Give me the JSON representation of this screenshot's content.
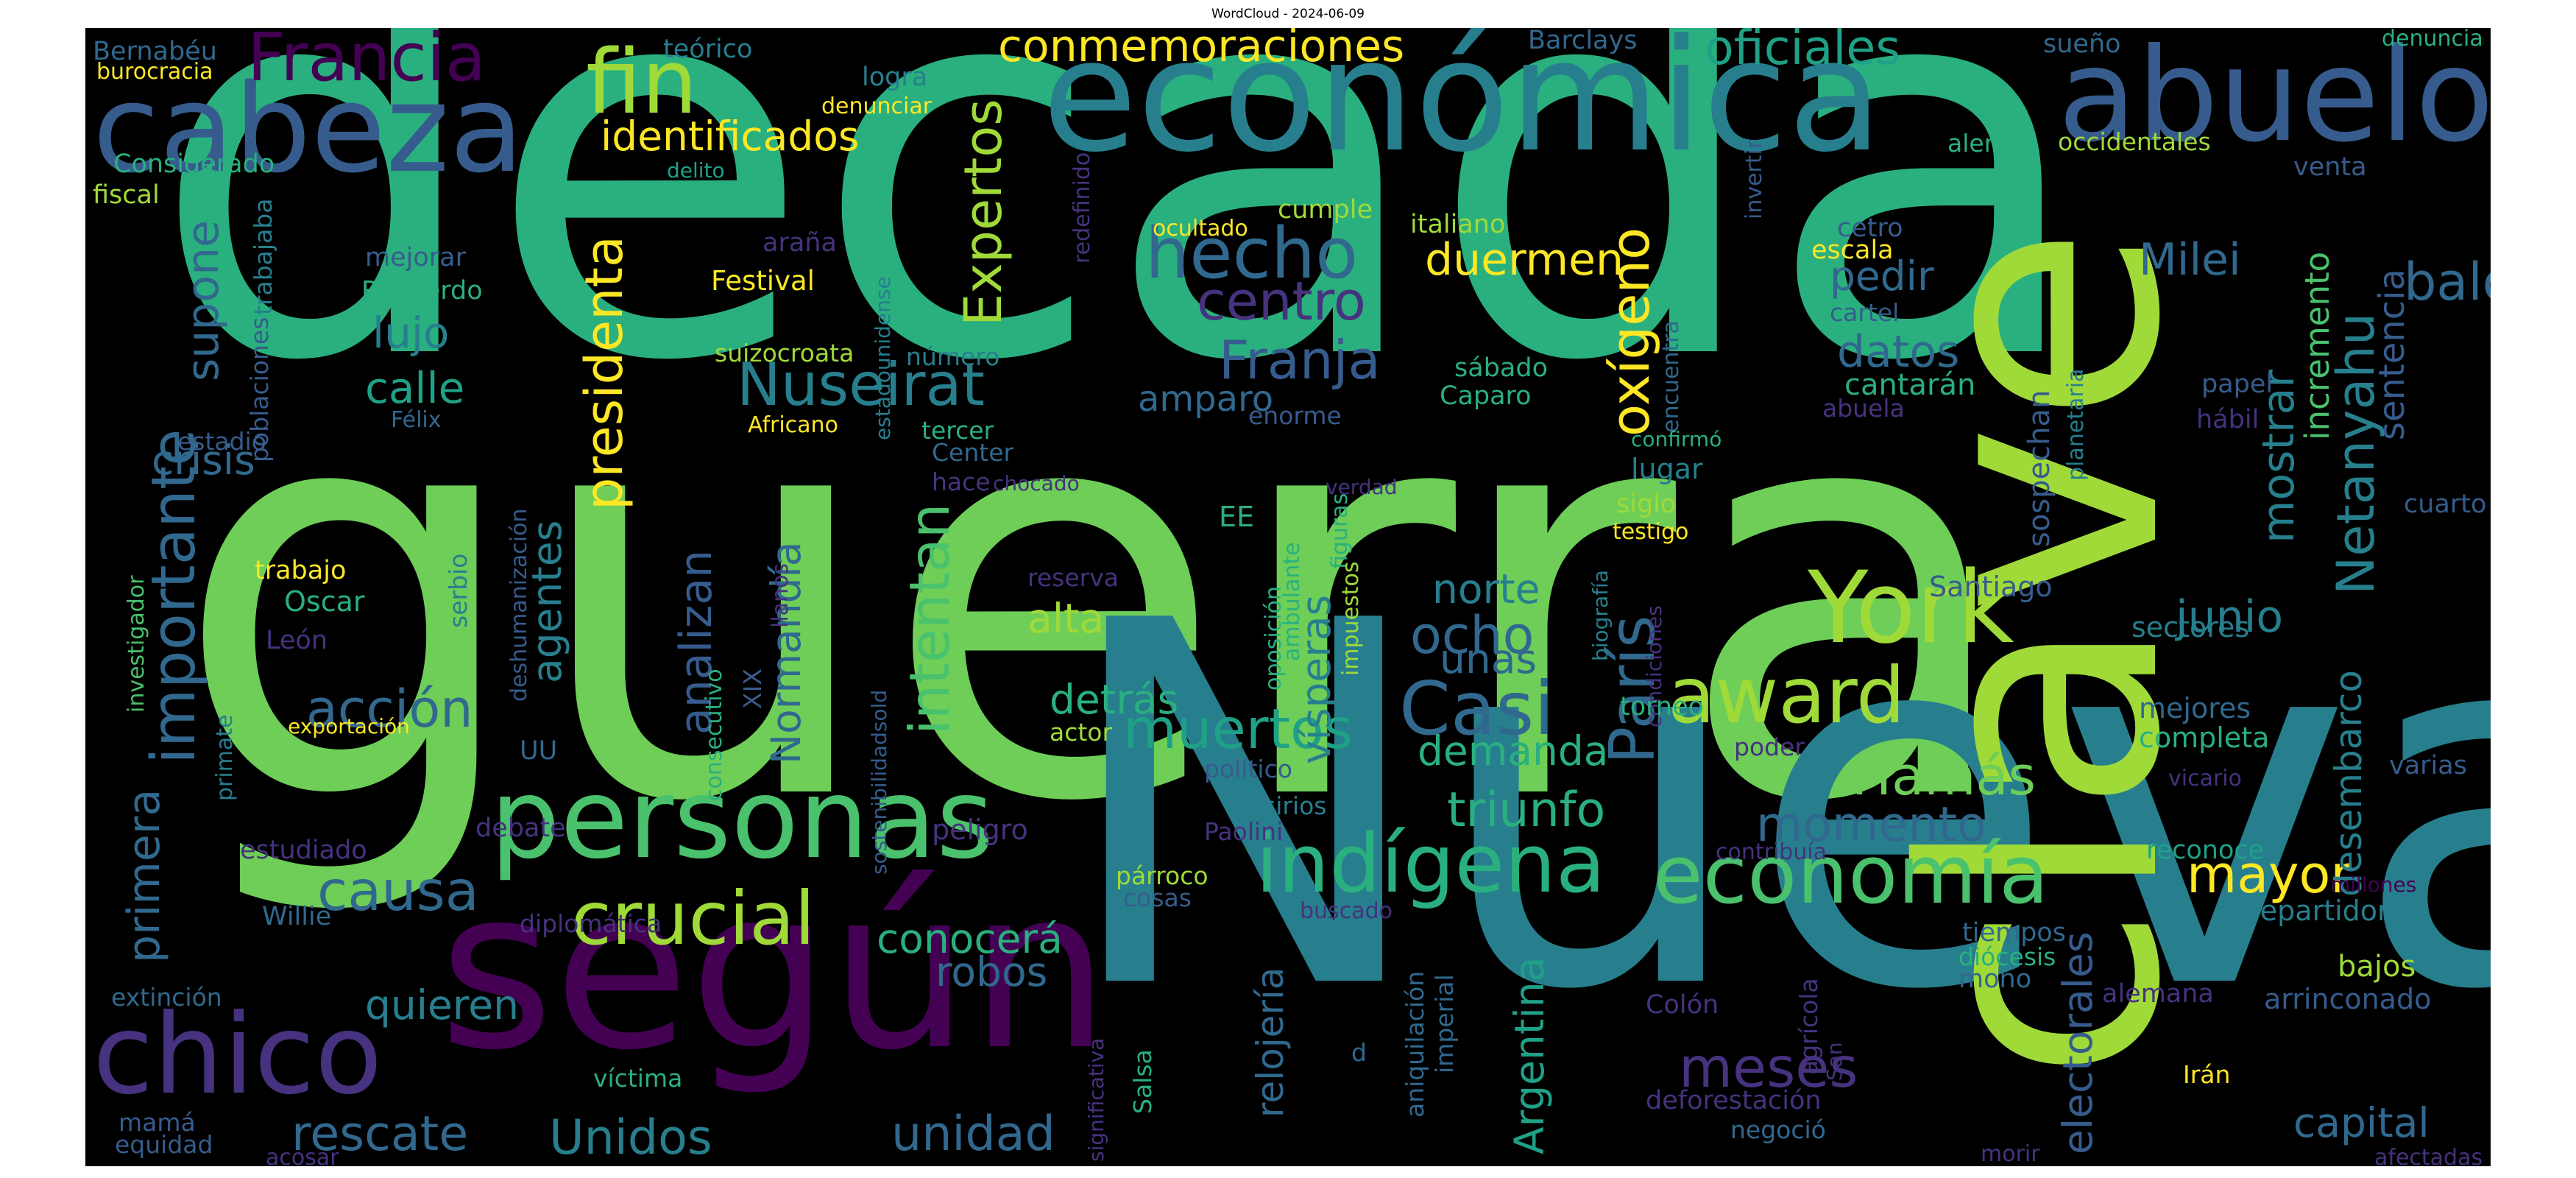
{
  "title": "WordCloud - 2024-06-09",
  "palette": {
    "purple": "#440154",
    "indigo": "#46327e",
    "blue": "#365c8d",
    "slate": "#31688e",
    "teal": "#277f8e",
    "aqua": "#1fa187",
    "green": "#2ab07f",
    "lime": "#4ac16d",
    "light": "#6ece58",
    "yellowgreen": "#a0da39",
    "yellow": "#fde725"
  },
  "words": [
    {
      "text": "década",
      "color": "#2ab07f"
    },
    {
      "text": "guerra",
      "color": "#6ece58"
    },
    {
      "text": "Nueva",
      "color": "#277f8e"
    },
    {
      "text": "clave",
      "color": "#a0da39"
    },
    {
      "text": "económica",
      "color": "#277f8e"
    },
    {
      "text": "según",
      "color": "#440154"
    },
    {
      "text": "cabeza",
      "color": "#365c8d"
    },
    {
      "text": "abuelo",
      "color": "#365c8d"
    },
    {
      "text": "personas",
      "color": "#4ac16d"
    },
    {
      "text": "chico",
      "color": "#46327e"
    },
    {
      "text": "York",
      "color": "#a0da39"
    },
    {
      "text": "Francia",
      "color": "#440154"
    },
    {
      "text": "fin",
      "color": "#a0da39"
    },
    {
      "text": "importante",
      "color": "#31688e"
    },
    {
      "text": "award",
      "color": "#a0da39"
    },
    {
      "text": "Casi",
      "color": "#31688e"
    },
    {
      "text": "París",
      "color": "#31688e"
    },
    {
      "text": "indígena",
      "color": "#2ab07f"
    },
    {
      "text": "economía",
      "color": "#4ac16d"
    },
    {
      "text": "crucial",
      "color": "#a0da39"
    },
    {
      "text": "hecho",
      "color": "#31688e"
    },
    {
      "text": "Nuseirat",
      "color": "#277f8e"
    },
    {
      "text": "Hamás",
      "color": "#6ece58"
    },
    {
      "text": "oficiales",
      "color": "#1fa187"
    },
    {
      "text": "conmemoraciones",
      "color": "#fde725"
    },
    {
      "text": "identificados",
      "color": "#fde725"
    },
    {
      "text": "presidenta",
      "color": "#fde725"
    },
    {
      "text": "Expertos",
      "color": "#a0da39"
    },
    {
      "text": "oxígeno",
      "color": "#fde725"
    },
    {
      "text": "Netanyahu",
      "color": "#277f8e"
    },
    {
      "text": "mostrar",
      "color": "#277f8e"
    },
    {
      "text": "balón",
      "color": "#31688e"
    },
    {
      "text": "Milei",
      "color": "#31688e"
    },
    {
      "text": "centro",
      "color": "#46327e"
    },
    {
      "text": "Franja",
      "color": "#365c8d"
    },
    {
      "text": "duermen",
      "color": "#fde725"
    },
    {
      "text": "supone",
      "color": "#31688e"
    },
    {
      "text": "lujo",
      "color": "#277f8e"
    },
    {
      "text": "calle",
      "color": "#1fa187"
    },
    {
      "text": "crisis",
      "color": "#31688e"
    },
    {
      "text": "primera",
      "color": "#31688e"
    },
    {
      "text": "acción",
      "color": "#31688e"
    },
    {
      "text": "analizan",
      "color": "#365c8d"
    },
    {
      "text": "agentes",
      "color": "#277f8e"
    },
    {
      "text": "intentan",
      "color": "#4ac16d"
    },
    {
      "text": "Normandía",
      "color": "#31688e"
    },
    {
      "text": "muertos",
      "color": "#1fa187"
    },
    {
      "text": "detrás",
      "color": "#2ab07f"
    },
    {
      "text": "alta",
      "color": "#a0da39"
    },
    {
      "text": "ocho",
      "color": "#31688e"
    },
    {
      "text": "unas",
      "color": "#31688e"
    },
    {
      "text": "norte",
      "color": "#277f8e"
    },
    {
      "text": "momento",
      "color": "#31688e"
    },
    {
      "text": "triunfo",
      "color": "#2ab07f"
    },
    {
      "text": "demanda",
      "color": "#2ab07f"
    },
    {
      "text": "vísperas",
      "color": "#277f8e"
    },
    {
      "text": "junio",
      "color": "#277f8e"
    },
    {
      "text": "mayor",
      "color": "#fde725"
    },
    {
      "text": "causa",
      "color": "#31688e"
    },
    {
      "text": "conocerá",
      "color": "#2ab07f"
    },
    {
      "text": "robos",
      "color": "#31688e"
    },
    {
      "text": "quieren",
      "color": "#277f8e"
    },
    {
      "text": "rescate",
      "color": "#31688e"
    },
    {
      "text": "Unidos",
      "color": "#277f8e"
    },
    {
      "text": "unidad",
      "color": "#31688e"
    },
    {
      "text": "meses",
      "color": "#46327e"
    },
    {
      "text": "relojería",
      "color": "#31688e"
    },
    {
      "text": "Argentina",
      "color": "#1fa187"
    },
    {
      "text": "electorales",
      "color": "#365c8d"
    },
    {
      "text": "capital",
      "color": "#31688e"
    },
    {
      "text": "datos",
      "color": "#31688e"
    },
    {
      "text": "pedir",
      "color": "#31688e"
    },
    {
      "text": "cantarán",
      "color": "#2ab07f"
    },
    {
      "text": "amparo",
      "color": "#31688e"
    },
    {
      "text": "sospechan",
      "color": "#365c8d"
    },
    {
      "text": "incremento",
      "color": "#4ac16d"
    },
    {
      "text": "sentencia",
      "color": "#365c8d"
    },
    {
      "text": "desembarco",
      "color": "#277f8e"
    },
    {
      "text": "Santiago",
      "color": "#365c8d"
    },
    {
      "text": "sectores",
      "color": "#277f8e"
    },
    {
      "text": "completa",
      "color": "#2ab07f"
    },
    {
      "text": "mejores",
      "color": "#31688e"
    },
    {
      "text": "reconoce",
      "color": "#1fa187"
    },
    {
      "text": "repartidor",
      "color": "#277f8e"
    },
    {
      "text": "bajos",
      "color": "#a0da39"
    },
    {
      "text": "arrinconado",
      "color": "#365c8d"
    },
    {
      "text": "varias",
      "color": "#365c8d"
    },
    {
      "text": "cuarto",
      "color": "#365c8d"
    },
    {
      "text": "Barclays",
      "color": "#31688e"
    },
    {
      "text": "sueño",
      "color": "#31688e"
    },
    {
      "text": "denuncia",
      "color": "#2ab07f"
    },
    {
      "text": "Bernabéu",
      "color": "#31688e"
    },
    {
      "text": "burocracia",
      "color": "#fde725"
    },
    {
      "text": "teórico",
      "color": "#277f8e"
    },
    {
      "text": "logra",
      "color": "#277f8e"
    },
    {
      "text": "denunciar",
      "color": "#fde725"
    },
    {
      "text": "Considerado",
      "color": "#2ab07f"
    },
    {
      "text": "delito",
      "color": "#1fa187"
    },
    {
      "text": "fiscal",
      "color": "#a0da39"
    },
    {
      "text": "trabajaba",
      "color": "#277f8e"
    },
    {
      "text": "mejorar",
      "color": "#365c8d"
    },
    {
      "text": "Recuerdo",
      "color": "#2ab07f"
    },
    {
      "text": "araña",
      "color": "#46327e"
    },
    {
      "text": "Festival",
      "color": "#fde725"
    },
    {
      "text": "suizocroata",
      "color": "#a0da39"
    },
    {
      "text": "número",
      "color": "#277f8e"
    },
    {
      "text": "poblaciones",
      "color": "#365c8d"
    },
    {
      "text": "estadio",
      "color": "#365c8d"
    },
    {
      "text": "Félix",
      "color": "#31688e"
    },
    {
      "text": "Africano",
      "color": "#fde725"
    },
    {
      "text": "tercer",
      "color": "#2ab07f"
    },
    {
      "text": "Center",
      "color": "#31688e"
    },
    {
      "text": "hace",
      "color": "#46327e"
    },
    {
      "text": "chocado",
      "color": "#46327e"
    },
    {
      "text": "estadounidense",
      "color": "#277f8e"
    },
    {
      "text": "redefinido",
      "color": "#46327e"
    },
    {
      "text": "ocultado",
      "color": "#fde725"
    },
    {
      "text": "cumple",
      "color": "#a0da39"
    },
    {
      "text": "italiano",
      "color": "#a0da39"
    },
    {
      "text": "sábado",
      "color": "#2ab07f"
    },
    {
      "text": "Caparo",
      "color": "#2ab07f"
    },
    {
      "text": "enorme",
      "color": "#365c8d"
    },
    {
      "text": "cetro",
      "color": "#365c8d"
    },
    {
      "text": "escala",
      "color": "#fde725"
    },
    {
      "text": "cartel",
      "color": "#365c8d"
    },
    {
      "text": "abuela",
      "color": "#46327e"
    },
    {
      "text": "alerta",
      "color": "#2ab07f"
    },
    {
      "text": "occidentales",
      "color": "#a0da39"
    },
    {
      "text": "venta",
      "color": "#365c8d"
    },
    {
      "text": "invertir",
      "color": "#365c8d"
    },
    {
      "text": "encuentra",
      "color": "#31688e"
    },
    {
      "text": "confirmó",
      "color": "#2ab07f"
    },
    {
      "text": "papel",
      "color": "#365c8d"
    },
    {
      "text": "hábil",
      "color": "#46327e"
    },
    {
      "text": "planetaria",
      "color": "#277f8e"
    },
    {
      "text": "lugar",
      "color": "#277f8e"
    },
    {
      "text": "siglo",
      "color": "#a0da39"
    },
    {
      "text": "testigo",
      "color": "#fde725"
    },
    {
      "text": "trabajo",
      "color": "#fde725"
    },
    {
      "text": "Oscar",
      "color": "#2ab07f"
    },
    {
      "text": "León",
      "color": "#46327e"
    },
    {
      "text": "serbio",
      "color": "#277f8e"
    },
    {
      "text": "deshumanización",
      "color": "#365c8d"
    },
    {
      "text": "investigador",
      "color": "#4ac16d"
    },
    {
      "text": "primate",
      "color": "#277f8e"
    },
    {
      "text": "exportación",
      "color": "#fde725"
    },
    {
      "text": "XIX",
      "color": "#365c8d"
    },
    {
      "text": "llanos",
      "color": "#46327e"
    },
    {
      "text": "consecutivo",
      "color": "#2ab07f"
    },
    {
      "text": "sostenibilidadsold",
      "color": "#365c8d"
    },
    {
      "text": "UU",
      "color": "#31688e"
    },
    {
      "text": "debate",
      "color": "#46327e"
    },
    {
      "text": "estudiado",
      "color": "#46327e"
    },
    {
      "text": "Willie",
      "color": "#31688e"
    },
    {
      "text": "reserva",
      "color": "#46327e"
    },
    {
      "text": "actor",
      "color": "#a0da39"
    },
    {
      "text": "peligro",
      "color": "#46327e"
    },
    {
      "text": "EE",
      "color": "#2ab07f"
    },
    {
      "text": "político",
      "color": "#365c8d"
    },
    {
      "text": "sirios",
      "color": "#277f8e"
    },
    {
      "text": "Paolini",
      "color": "#46327e"
    },
    {
      "text": "oposición",
      "color": "#2ab07f"
    },
    {
      "text": "ambulante",
      "color": "#2ab07f"
    },
    {
      "text": "figuras",
      "color": "#2ab07f"
    },
    {
      "text": "impuestos",
      "color": "#a0da39"
    },
    {
      "text": "verdad",
      "color": "#46327e"
    },
    {
      "text": "biografía",
      "color": "#277f8e"
    },
    {
      "text": "condiciones",
      "color": "#46327e"
    },
    {
      "text": "torneo",
      "color": "#2ab07f"
    },
    {
      "text": "poder",
      "color": "#46327e"
    },
    {
      "text": "vicario",
      "color": "#46327e"
    },
    {
      "text": "contribuía",
      "color": "#46327e"
    },
    {
      "text": "millones",
      "color": "#440154"
    },
    {
      "text": "tiempos",
      "color": "#31688e"
    },
    {
      "text": "diócesis",
      "color": "#2ab07f"
    },
    {
      "text": "mono",
      "color": "#31688e"
    },
    {
      "text": "agrícola",
      "color": "#46327e"
    },
    {
      "text": "San",
      "color": "#46327e"
    },
    {
      "text": "Irán",
      "color": "#fde725"
    },
    {
      "text": "párroco",
      "color": "#a0da39"
    },
    {
      "text": "cosas",
      "color": "#365c8d"
    },
    {
      "text": "buscado",
      "color": "#46327e"
    },
    {
      "text": "diplomática",
      "color": "#46327e"
    },
    {
      "text": "extinción",
      "color": "#31688e"
    },
    {
      "text": "víctima",
      "color": "#2ab07f"
    },
    {
      "text": "mamá",
      "color": "#365c8d"
    },
    {
      "text": "equidad",
      "color": "#365c8d"
    },
    {
      "text": "acosar",
      "color": "#46327e"
    },
    {
      "text": "significativa",
      "color": "#46327e"
    },
    {
      "text": "Salsa",
      "color": "#2ab07f"
    },
    {
      "text": "d",
      "color": "#31688e"
    },
    {
      "text": "aniquilación",
      "color": "#31688e"
    },
    {
      "text": "imperial",
      "color": "#31688e"
    },
    {
      "text": "Colón",
      "color": "#46327e"
    },
    {
      "text": "deforestación",
      "color": "#46327e"
    },
    {
      "text": "negoció",
      "color": "#31688e"
    },
    {
      "text": "alemana",
      "color": "#46327e"
    },
    {
      "text": "morir",
      "color": "#46327e"
    },
    {
      "text": "afectadas",
      "color": "#46327e"
    }
  ]
}
